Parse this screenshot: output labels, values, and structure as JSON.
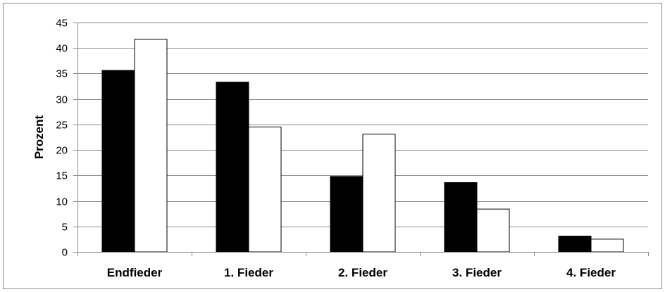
{
  "chart_data": {
    "type": "bar",
    "title": "",
    "xlabel": "",
    "ylabel": "Prozent",
    "categories": [
      "Endfieder",
      "1. Fieder",
      "2. Fieder",
      "3. Fieder",
      "4. Fieder"
    ],
    "series": [
      {
        "values": [
          35.6,
          33.3,
          14.8,
          13.6,
          3.1
        ],
        "color": "#000000"
      },
      {
        "values": [
          41.7,
          24.5,
          23.1,
          8.4,
          2.5
        ],
        "color": "#ffffff"
      }
    ],
    "ylim": [
      0,
      45
    ],
    "yticks": [
      0,
      5,
      10,
      15,
      20,
      25,
      30,
      35,
      40,
      45
    ],
    "grid": true,
    "legend": "none"
  }
}
